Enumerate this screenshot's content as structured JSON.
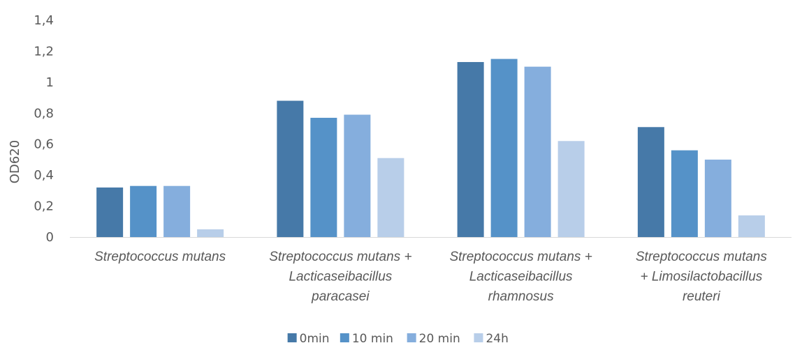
{
  "chart_data": {
    "type": "bar",
    "title": "",
    "xlabel": "",
    "ylabel": "OD620",
    "ylim": [
      0,
      1.4
    ],
    "yticks": [
      "0",
      "0,2",
      "0,4",
      "0,6",
      "0,8",
      "1",
      "1,2",
      "1,4"
    ],
    "grid": false,
    "legend_position": "bottom",
    "categories": [
      "Streptococcus mutans",
      "Streptococcus mutans + Lacticaseibacillus paracasei",
      "Streptococcus mutans + Lacticaseibacillus rhamnosus",
      "Streptococcus mutans + Limosilactobacillus reuteri"
    ],
    "category_label_lines": [
      [
        "Streptococcus mutans"
      ],
      [
        "Streptococcus mutans +",
        "Lacticaseibacillus",
        "paracasei"
      ],
      [
        "Streptococcus mutans +",
        "Lacticaseibacillus",
        "rhamnosus"
      ],
      [
        "Streptococcus mutans",
        "+  Limosilactobacillus",
        "reuteri"
      ]
    ],
    "series": [
      {
        "name": "0min",
        "color": "#4679a8",
        "values": [
          0.32,
          0.88,
          1.13,
          0.71
        ]
      },
      {
        "name": "10 min",
        "color": "#5592c8",
        "values": [
          0.33,
          0.77,
          1.15,
          0.56
        ]
      },
      {
        "name": "20 min",
        "color": "#85aedd",
        "values": [
          0.33,
          0.79,
          1.1,
          0.5
        ]
      },
      {
        "name": "24h",
        "color": "#b8cee9",
        "values": [
          0.05,
          0.51,
          0.62,
          0.14
        ]
      }
    ]
  }
}
